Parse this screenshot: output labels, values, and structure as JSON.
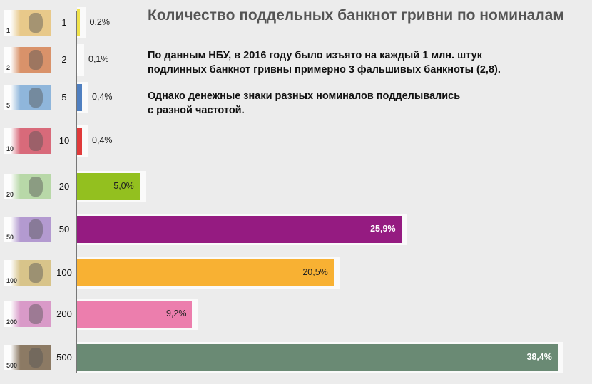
{
  "title": "Количество поддельных банкнот гривни по номиналам",
  "paragraphs": [
    [
      "По данным НБУ, в 2016 году было изъято на каждый 1 млн. штук",
      "подлинных банкнот гривны примерно 3 фальшивых банкноты (2,8)."
    ],
    [
      "Однако денежные знаки разных номиналов подделывались",
      "с разной частотой."
    ]
  ],
  "chart_data": {
    "type": "bar",
    "orientation": "horizontal",
    "title": "Количество поддельных банкнот гривни по номиналам",
    "categories": [
      "1",
      "2",
      "5",
      "10",
      "20",
      "50",
      "100",
      "200",
      "500"
    ],
    "values": [
      0.2,
      0.1,
      0.4,
      0.4,
      5.0,
      25.9,
      20.5,
      9.2,
      38.4
    ],
    "labels": [
      "0,2%",
      "0,1%",
      "0,4%",
      "0,4%",
      "5,0%",
      "25,9%",
      "20,5%",
      "9,2%",
      "38,4%"
    ],
    "colors": [
      "#f0e24a",
      "#ffffff",
      "#4f7fc0",
      "#e03a3a",
      "#93c01f",
      "#951b81",
      "#f8b133",
      "#ec7ead",
      "#6a8a74"
    ],
    "note_colors": [
      "#e8c98a",
      "#d9926a",
      "#8fb6db",
      "#d86a7a",
      "#b8d8a8",
      "#b39ad0",
      "#d8c48a",
      "#d99ac8",
      "#8c7a64"
    ],
    "xlabel": "",
    "ylabel": "",
    "xlim": [
      0,
      40
    ],
    "grid": false
  }
}
